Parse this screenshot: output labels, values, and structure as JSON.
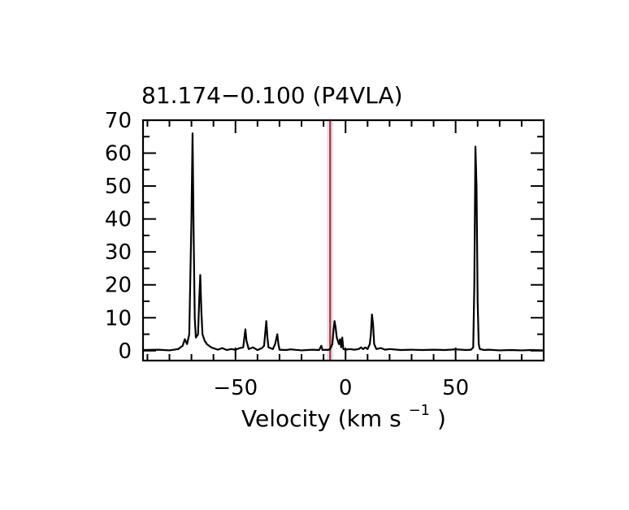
{
  "chart_data": {
    "type": "line",
    "title": "81.174−0.100 (P4VLA)",
    "xlabel": {
      "main": "Velocity (km s",
      "superscript": "−1",
      "close": ")"
    },
    "ylabel": "",
    "xlim": [
      -92,
      90
    ],
    "ylim": [
      -3,
      70
    ],
    "x_ticks": [
      -50,
      0,
      50
    ],
    "x_tick_labels": [
      "−50",
      "0",
      "50"
    ],
    "y_ticks": [
      0,
      10,
      20,
      30,
      40,
      50,
      60,
      70
    ],
    "y_tick_labels": [
      "0",
      "10",
      "20",
      "30",
      "40",
      "50",
      "60",
      "70"
    ],
    "marker_line": {
      "x": -7,
      "color": "#d42020"
    },
    "line_color": "#000000",
    "series": [
      {
        "points": [
          [
            -92,
            0.2
          ],
          [
            -85,
            0.3
          ],
          [
            -80,
            0.1
          ],
          [
            -76,
            0.5
          ],
          [
            -74,
            1.5
          ],
          [
            -73,
            3.5
          ],
          [
            -72,
            2.0
          ],
          [
            -71,
            5.0
          ],
          [
            -70,
            40.0
          ],
          [
            -69.5,
            66.0
          ],
          [
            -69,
            35.0
          ],
          [
            -68.5,
            10.0
          ],
          [
            -68,
            4.0
          ],
          [
            -67,
            5.0
          ],
          [
            -66.5,
            15.0
          ],
          [
            -66,
            23.0
          ],
          [
            -65.5,
            12.0
          ],
          [
            -65,
            5.0
          ],
          [
            -64,
            3.0
          ],
          [
            -63,
            2.0
          ],
          [
            -61,
            1.0
          ],
          [
            -58,
            0.3
          ],
          [
            -56,
            0.8
          ],
          [
            -54,
            0.2
          ],
          [
            -52,
            0.5
          ],
          [
            -50,
            0.3
          ],
          [
            -48,
            0.8
          ],
          [
            -46.5,
            1.0
          ],
          [
            -45.5,
            6.5
          ],
          [
            -45,
            3.0
          ],
          [
            -44,
            0.5
          ],
          [
            -42,
            1.0
          ],
          [
            -40,
            0.2
          ],
          [
            -38,
            0.8
          ],
          [
            -37,
            1.5
          ],
          [
            -36,
            9.0
          ],
          [
            -35.5,
            4.0
          ],
          [
            -35,
            1.0
          ],
          [
            -33,
            0.5
          ],
          [
            -32,
            2.0
          ],
          [
            -31,
            5.0
          ],
          [
            -30.5,
            2.0
          ],
          [
            -30,
            0.3
          ],
          [
            -27,
            0.2
          ],
          [
            -25,
            0.4
          ],
          [
            -20,
            0.1
          ],
          [
            -15,
            0.3
          ],
          [
            -12,
            0.2
          ],
          [
            -11,
            1.5
          ],
          [
            -10.5,
            0.2
          ],
          [
            -9,
            0.3
          ],
          [
            -8,
            0.2
          ],
          [
            -7,
            0.5
          ],
          [
            -6,
            2.0
          ],
          [
            -5.5,
            6.0
          ],
          [
            -5,
            9.0
          ],
          [
            -4.5,
            7.0
          ],
          [
            -4,
            4.0
          ],
          [
            -3.5,
            3.0
          ],
          [
            -3,
            2.0
          ],
          [
            -2.5,
            3.5
          ],
          [
            -2,
            1.0
          ],
          [
            -1.5,
            4.0
          ],
          [
            -1,
            0.5
          ],
          [
            0,
            0.3
          ],
          [
            2,
            0.5
          ],
          [
            4,
            0.3
          ],
          [
            6,
            0.5
          ],
          [
            7,
            1.0
          ],
          [
            8,
            0.5
          ],
          [
            9,
            1.0
          ],
          [
            10,
            0.5
          ],
          [
            11,
            2.0
          ],
          [
            11.5,
            5.0
          ],
          [
            12,
            11.0
          ],
          [
            12.5,
            8.0
          ],
          [
            13,
            2.0
          ],
          [
            14,
            0.5
          ],
          [
            16,
            0.8
          ],
          [
            18,
            0.3
          ],
          [
            20,
            0.5
          ],
          [
            25,
            0.2
          ],
          [
            30,
            0.3
          ],
          [
            35,
            0.2
          ],
          [
            40,
            0.3
          ],
          [
            45,
            0.2
          ],
          [
            50,
            0.4
          ],
          [
            55,
            0.2
          ],
          [
            57,
            0.3
          ],
          [
            58,
            1.0
          ],
          [
            58.5,
            20.0
          ],
          [
            59,
            62.0
          ],
          [
            59.5,
            50.0
          ],
          [
            60,
            15.0
          ],
          [
            60.5,
            2.0
          ],
          [
            61,
            0.5
          ],
          [
            63,
            0.2
          ],
          [
            65,
            0.3
          ],
          [
            70,
            0.1
          ],
          [
            75,
            0.2
          ],
          [
            80,
            0.1
          ],
          [
            85,
            0.2
          ],
          [
            90,
            0.1
          ]
        ]
      }
    ]
  }
}
